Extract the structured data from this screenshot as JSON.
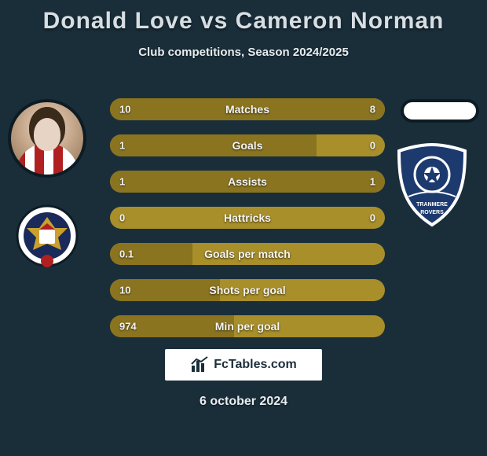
{
  "title": "Donald Love vs Cameron Norman",
  "subtitle": "Club competitions, Season 2024/2025",
  "date": "6 october 2024",
  "brand": "FcTables.com",
  "colors": {
    "background": "#1a2e3a",
    "bar_base": "#a88f2a",
    "bar_fill": "#8a7420",
    "text": "#ffffff",
    "title": "#d7dee3"
  },
  "metrics": [
    {
      "label": "Matches",
      "left_val": "10",
      "right_val": "8",
      "left_pct": 55,
      "right_pct": 45
    },
    {
      "label": "Goals",
      "left_val": "1",
      "right_val": "0",
      "left_pct": 75,
      "right_pct": 0
    },
    {
      "label": "Assists",
      "left_val": "1",
      "right_val": "1",
      "left_pct": 50,
      "right_pct": 50
    },
    {
      "label": "Hattricks",
      "left_val": "0",
      "right_val": "0",
      "left_pct": 0,
      "right_pct": 0
    },
    {
      "label": "Goals per match",
      "left_val": "0.1",
      "right_val": "",
      "left_pct": 30,
      "right_pct": 0
    },
    {
      "label": "Shots per goal",
      "left_val": "10",
      "right_val": "",
      "left_pct": 40,
      "right_pct": 0
    },
    {
      "label": "Min per goal",
      "left_val": "974",
      "right_val": "",
      "left_pct": 45,
      "right_pct": 0
    }
  ],
  "left_team": "Accrington Stanley",
  "right_team": "Tranmere Rovers"
}
